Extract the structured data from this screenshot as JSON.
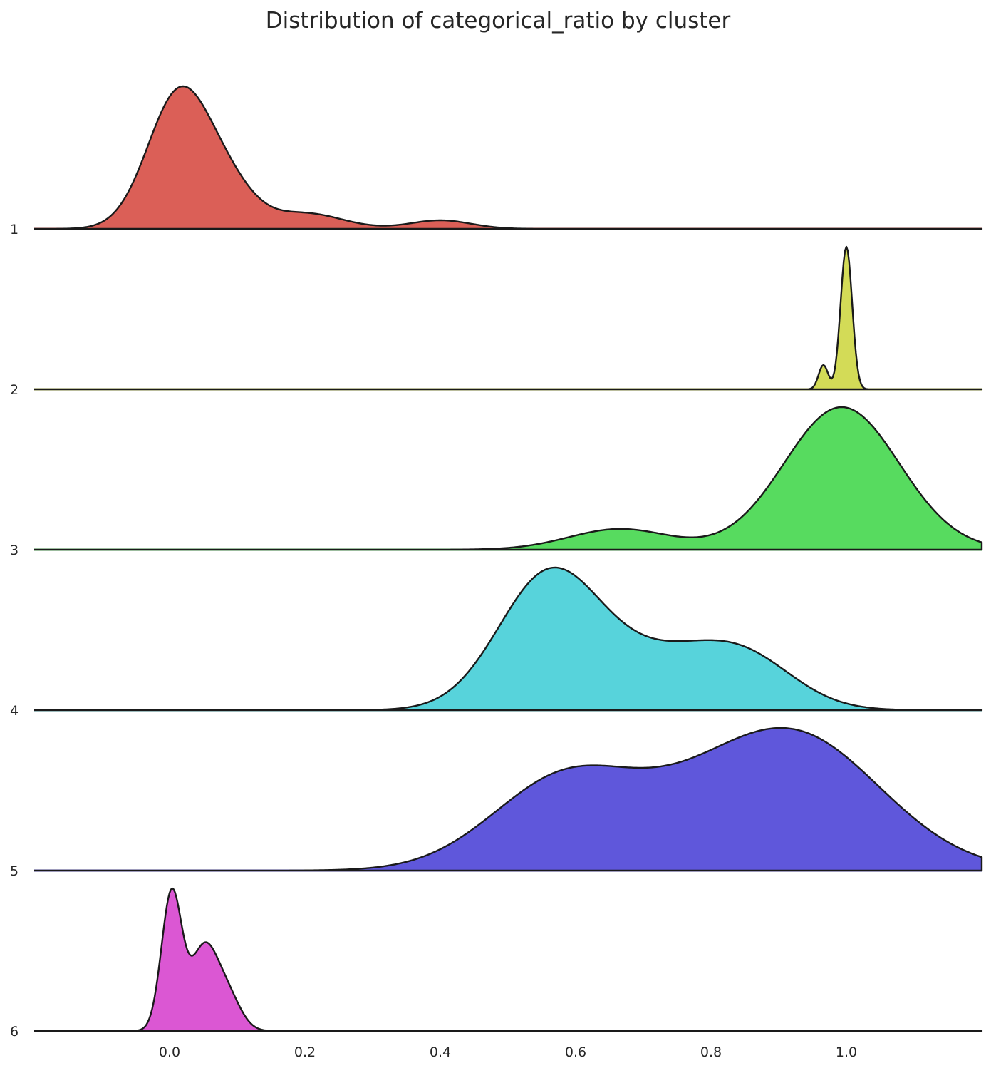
{
  "chart_data": {
    "type": "area",
    "title": "Distribution of categorical_ratio by cluster",
    "xlabel": "",
    "ylabel": "",
    "xlim": [
      -0.2,
      1.2
    ],
    "x_ticks": [
      "0.0",
      "0.2",
      "0.4",
      "0.6",
      "0.8",
      "1.0"
    ],
    "x_tick_values": [
      0.0,
      0.2,
      0.4,
      0.6,
      0.8,
      1.0
    ],
    "grid": false,
    "legend": "none",
    "series": [
      {
        "name": "1",
        "color": "#db5f57",
        "components": [
          {
            "mu": 0.015,
            "sigma": 0.047,
            "w": 0.88
          },
          {
            "mu": 0.09,
            "sigma": 0.04,
            "w": 0.2
          },
          {
            "mu": 0.2,
            "sigma": 0.055,
            "w": 0.1
          },
          {
            "mu": 0.4,
            "sigma": 0.045,
            "w": 0.055
          }
        ]
      },
      {
        "name": "2",
        "color": "#d3db57",
        "components": [
          {
            "mu": 1.0,
            "sigma": 0.0085,
            "w": 1.0
          },
          {
            "mu": 0.966,
            "sigma": 0.007,
            "w": 0.17
          }
        ]
      },
      {
        "name": "3",
        "color": "#57db5f",
        "components": [
          {
            "mu": 0.993,
            "sigma": 0.085,
            "w": 1.0
          },
          {
            "mu": 0.665,
            "sigma": 0.075,
            "w": 0.145
          }
        ]
      },
      {
        "name": "4",
        "color": "#57d3db",
        "components": [
          {
            "mu": 0.56,
            "sigma": 0.075,
            "w": 0.9
          },
          {
            "mu": 0.72,
            "sigma": 0.09,
            "w": 0.32
          },
          {
            "mu": 0.85,
            "sigma": 0.075,
            "w": 0.32
          }
        ]
      },
      {
        "name": "5",
        "color": "#5f57db",
        "components": [
          {
            "mu": 0.59,
            "sigma": 0.11,
            "w": 0.66
          },
          {
            "mu": 0.92,
            "sigma": 0.13,
            "w": 0.95
          },
          {
            "mu": 0.77,
            "sigma": 0.09,
            "w": 0.12
          }
        ]
      },
      {
        "name": "6",
        "color": "#db57d3",
        "components": [
          {
            "mu": 0.003,
            "sigma": 0.015,
            "w": 1.0
          },
          {
            "mu": 0.05,
            "sigma": 0.02,
            "w": 0.58
          },
          {
            "mu": 0.085,
            "sigma": 0.02,
            "w": 0.25
          }
        ]
      }
    ]
  }
}
